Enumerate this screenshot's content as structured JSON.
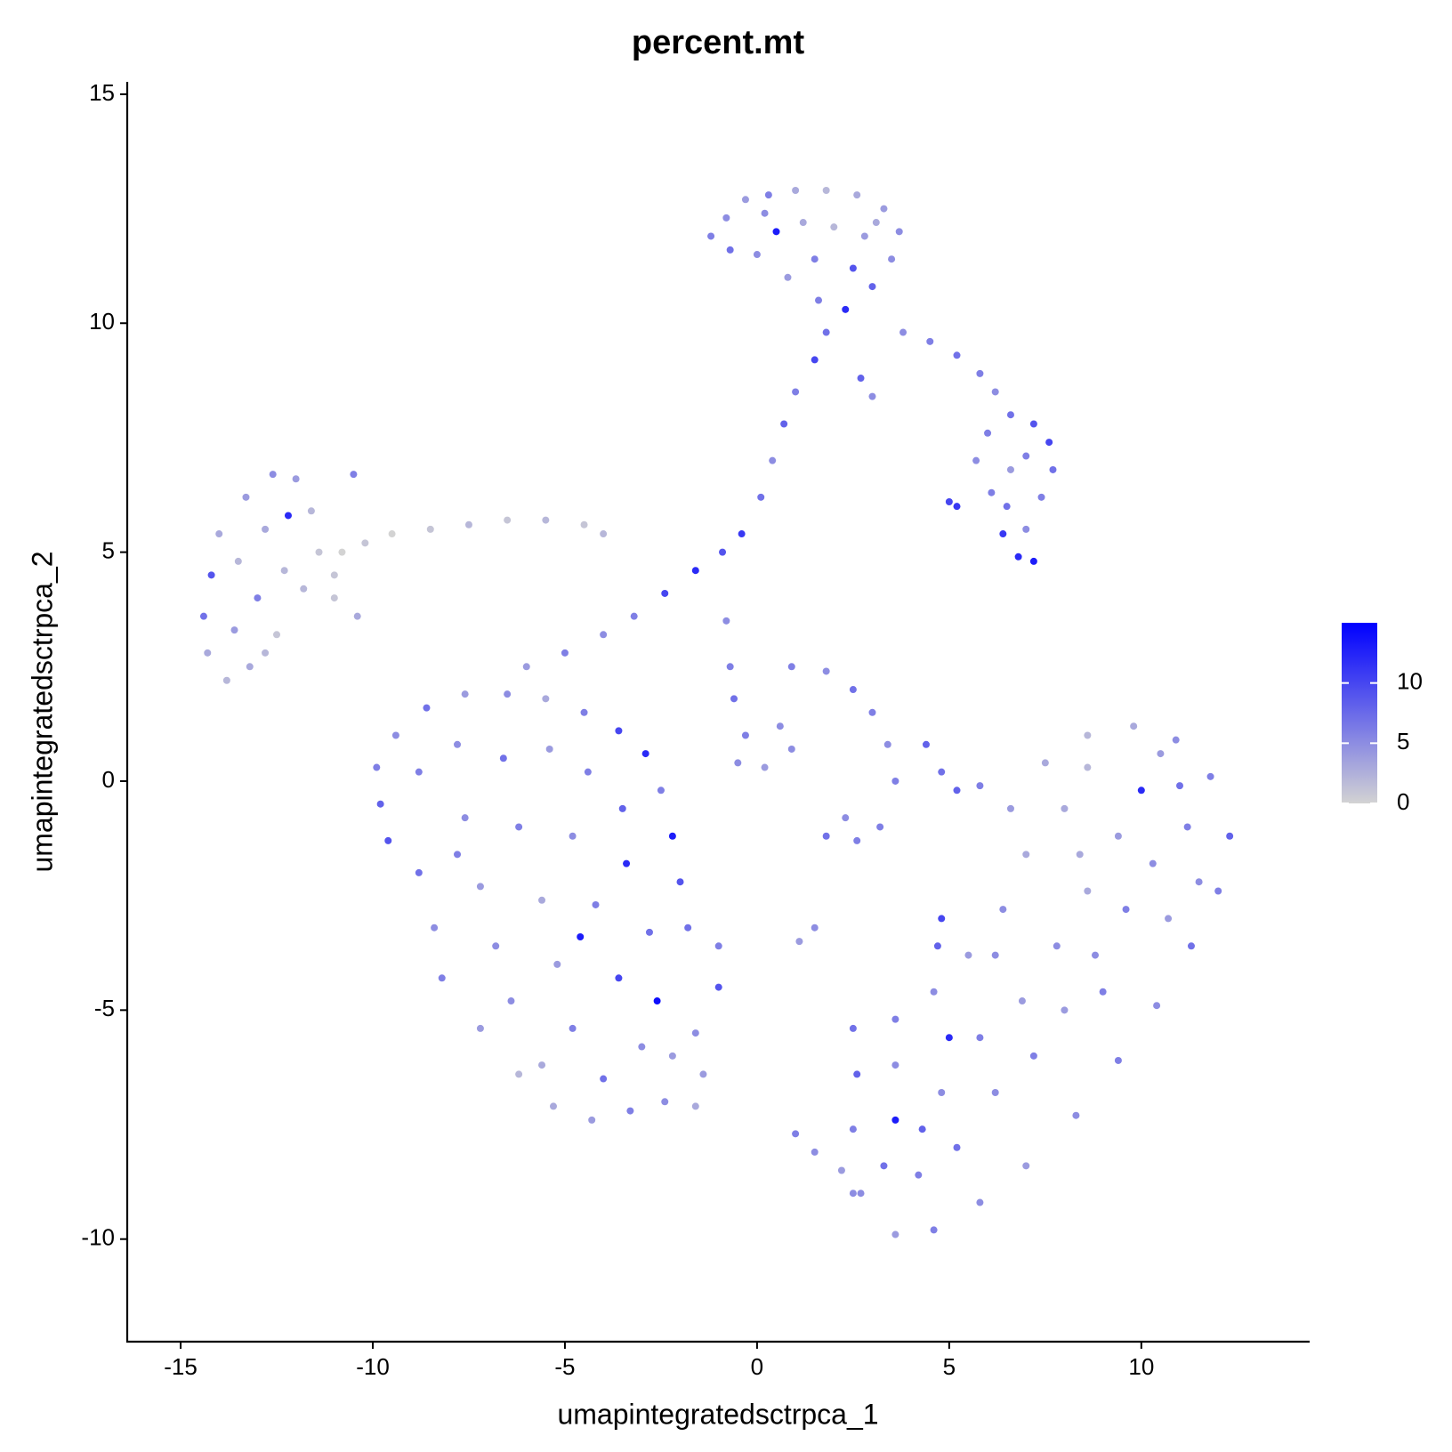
{
  "chart_data": {
    "type": "scatter",
    "title": "percent.mt",
    "x_label": "umapintegratedsctrpca_1",
    "y_label": "umapintegratedsctrpca_2",
    "xlim": [
      -16.39,
      14.38
    ],
    "ylim": [
      -12.24,
      15.27
    ],
    "xticks": [
      -15,
      -10,
      -5,
      0,
      5,
      10
    ],
    "yticks": [
      -10,
      -5,
      0,
      5,
      10,
      15
    ],
    "grid": false,
    "low_color": "#d3d3d3",
    "high_color": "#0000ff",
    "colorlim": [
      0,
      15
    ],
    "colorticks": [
      0,
      5,
      10
    ],
    "x": [
      -1.2,
      -0.8,
      -0.3,
      0.3,
      1,
      1.8,
      2.6,
      3.3,
      3.7,
      3.5,
      3,
      2.3,
      1.6,
      0.8,
      0,
      -0.7,
      0.5,
      1.2,
      2,
      2.8,
      1.5,
      2.5,
      0.2,
      3.1,
      1.8,
      1.5,
      1.0,
      0.7,
      0.4,
      0.1,
      -0.4,
      -0.9,
      -1.6,
      -2.4,
      -3.2,
      -4,
      -5,
      -6,
      -0.8,
      -0.7,
      -0.6,
      2.7,
      3.0,
      3.8,
      4.5,
      5.2,
      5.8,
      6.2,
      6.0,
      6.6,
      7.2,
      7.6,
      7.7,
      7.4,
      7.0,
      6.8,
      7.2,
      6.4,
      6.1,
      5.7,
      6.6,
      7.0,
      6.5,
      5.2,
      5.0,
      -14.4,
      -14.3,
      -13.8,
      -13.2,
      -12.5,
      -11.8,
      -11.4,
      -11.6,
      -12.0,
      -12.6,
      -13.3,
      -14.0,
      -14.2,
      -13.5,
      -12.8,
      -13.0,
      -12.3,
      -13.6,
      -12.8,
      -12.2,
      -10.5,
      -11.0,
      -10.8,
      -10.2,
      -9.5,
      -8.5,
      -7.5,
      -6.5,
      -5.5,
      -4.5,
      -4.0,
      -11.0,
      -10.4,
      -9.8,
      -9.9,
      -9.4,
      -8.6,
      -7.6,
      -6.5,
      -5.5,
      -4.5,
      -3.6,
      -2.9,
      -2.5,
      -2.2,
      -2.0,
      -1.8,
      -1.0,
      -1.0,
      -1.6,
      -1.4,
      -1.6,
      -2.4,
      -3.3,
      -4.3,
      -5.3,
      -6.2,
      -7.2,
      -8.2,
      -8.4,
      -8.8,
      -9.6,
      -8.8,
      -7.8,
      -6.6,
      -5.4,
      -4.4,
      -3.5,
      -7.6,
      -6.2,
      -4.8,
      -3.4,
      -7.2,
      -5.6,
      -4.2,
      -2.8,
      -6.8,
      -5.2,
      -3.6,
      -2.6,
      -6.4,
      -4.8,
      -3.0,
      -5.6,
      -4.0,
      -2.2,
      -7.8,
      -4.6,
      -0.3,
      0.6,
      0.2,
      0.9,
      -0.5,
      0.9,
      1.8,
      2.5,
      3.0,
      3.4,
      3.6,
      2.3,
      1.8,
      2.6,
      3.2,
      1.5,
      1.1,
      4.4,
      4.8,
      5.2,
      5.8,
      4.8,
      4.7,
      1.0,
      1.5,
      2.2,
      2.5,
      2.5,
      3.6,
      4.6,
      5.5,
      6.4,
      7.0,
      6.6,
      7.5,
      8.6,
      9.8,
      10.9,
      11.8,
      12.3,
      12.0,
      11.3,
      10.4,
      9.4,
      8.3,
      7.0,
      5.8,
      4.6,
      3.6,
      2.7,
      2.5,
      2.6,
      3.6,
      3.6,
      4.2,
      4.8,
      5.2,
      5.8,
      6.2,
      6.9,
      7.2,
      7.8,
      8.0,
      8.6,
      8.8,
      9.4,
      9.6,
      10.0,
      10.3,
      10.7,
      11.2,
      11.5,
      8.0,
      8.6,
      10.5,
      9.0,
      6.2,
      4.3,
      3.3,
      5.0,
      8.4,
      11.0
    ],
    "y": [
      11.9,
      12.3,
      12.7,
      12.8,
      12.9,
      12.9,
      12.8,
      12.5,
      12,
      11.4,
      10.8,
      10.3,
      10.5,
      11,
      11.5,
      11.6,
      12,
      12.2,
      12.1,
      11.9,
      11.4,
      11.2,
      12.4,
      12.2,
      9.8,
      9.2,
      8.5,
      7.8,
      7,
      6.2,
      5.4,
      5,
      4.6,
      4.1,
      3.6,
      3.2,
      2.8,
      2.5,
      3.5,
      2.5,
      1.8,
      8.8,
      8.4,
      9.8,
      9.6,
      9.3,
      8.9,
      8.5,
      7.6,
      8.0,
      7.8,
      7.4,
      6.8,
      6.2,
      5.5,
      4.9,
      4.8,
      5.4,
      6.3,
      7.0,
      6.8,
      7.1,
      6.0,
      6.0,
      6.1,
      3.6,
      2.8,
      2.2,
      2.5,
      3.2,
      4.2,
      5.0,
      5.9,
      6.6,
      6.7,
      6.2,
      5.4,
      4.5,
      4.8,
      5.5,
      4.0,
      4.6,
      3.3,
      2.8,
      5.8,
      6.7,
      4.5,
      5.0,
      5.2,
      5.4,
      5.5,
      5.6,
      5.7,
      5.7,
      5.6,
      5.4,
      4.0,
      3.6,
      -0.5,
      0.3,
      1.0,
      1.6,
      1.9,
      1.9,
      1.8,
      1.5,
      1.1,
      0.6,
      -0.2,
      -1.2,
      -2.2,
      -3.2,
      -3.6,
      -4.5,
      -5.5,
      -6.4,
      -7.1,
      -7.0,
      -7.2,
      -7.4,
      -7.1,
      -6.4,
      -5.4,
      -4.3,
      -3.2,
      -2.0,
      -1.3,
      0.2,
      0.8,
      0.5,
      0.7,
      0.2,
      -0.6,
      -0.8,
      -1.0,
      -1.2,
      -1.8,
      -2.3,
      -2.6,
      -2.7,
      -3.3,
      -3.6,
      -4.0,
      -4.3,
      -4.8,
      -4.8,
      -5.4,
      -5.8,
      -6.2,
      -6.5,
      -6.0,
      -1.6,
      -3.4,
      1.0,
      1.2,
      0.3,
      0.7,
      0.4,
      2.5,
      2.4,
      2.0,
      1.5,
      0.8,
      0.0,
      -0.8,
      -1.2,
      -1.3,
      -1.0,
      -3.2,
      -3.5,
      0.8,
      0.2,
      -0.2,
      -0.1,
      -3.0,
      -3.6,
      -7.7,
      -8.1,
      -8.5,
      -9.0,
      -5.4,
      -5.2,
      -4.6,
      -3.8,
      -2.8,
      -1.6,
      -0.6,
      0.4,
      1.0,
      1.2,
      0.9,
      0.1,
      -1.2,
      -2.4,
      -3.6,
      -4.9,
      -6.1,
      -7.3,
      -8.4,
      -9.2,
      -9.8,
      -9.9,
      -9.0,
      -7.6,
      -6.4,
      -6.2,
      -7.4,
      -8.6,
      -6.8,
      -8.0,
      -5.6,
      -6.8,
      -4.8,
      -6.0,
      -3.6,
      -5.0,
      -2.4,
      -3.8,
      -1.2,
      -2.8,
      -0.2,
      -1.8,
      -3.0,
      -1.0,
      -2.2,
      -0.6,
      0.3,
      0.6,
      -4.6,
      -3.8,
      -7.6,
      -8.4,
      -5.6,
      -1.6,
      -0.1
    ],
    "values": [
      6,
      5,
      4,
      6,
      3,
      2,
      3,
      4,
      5,
      5,
      8,
      12,
      6,
      4,
      5,
      7,
      13,
      3,
      2,
      4,
      6,
      9,
      5,
      3,
      7,
      10,
      6,
      8,
      5,
      7,
      11,
      9,
      12,
      10,
      6,
      5,
      6,
      4,
      5,
      6,
      7,
      8,
      5,
      5,
      6,
      7,
      6,
      5,
      6,
      7,
      9,
      10,
      7,
      6,
      5,
      12,
      13,
      11,
      6,
      5,
      4,
      6,
      7,
      11,
      10,
      7,
      3,
      2,
      3,
      1,
      2,
      1,
      2,
      4,
      5,
      4,
      3,
      9,
      2,
      3,
      6,
      2,
      4,
      2,
      12,
      6,
      1,
      0,
      1,
      0,
      1,
      2,
      1,
      2,
      1,
      2,
      1,
      3,
      8,
      6,
      5,
      7,
      4,
      5,
      3,
      6,
      10,
      12,
      6,
      13,
      9,
      7,
      6,
      9,
      5,
      4,
      3,
      5,
      6,
      4,
      3,
      2,
      4,
      6,
      5,
      7,
      9,
      6,
      5,
      7,
      4,
      6,
      8,
      5,
      6,
      5,
      12,
      4,
      3,
      6,
      7,
      5,
      4,
      10,
      14,
      5,
      6,
      5,
      3,
      7,
      4,
      6,
      13,
      6,
      5,
      4,
      5,
      5,
      6,
      5,
      7,
      6,
      5,
      6,
      5,
      7,
      6,
      6,
      5,
      4,
      8,
      7,
      8,
      6,
      10,
      8,
      6,
      5,
      4,
      5,
      7,
      6,
      5,
      4,
      5,
      3,
      4,
      3,
      2,
      3,
      5,
      6,
      8,
      6,
      7,
      5,
      6,
      5,
      4,
      5,
      6,
      4,
      5,
      6,
      8,
      5,
      13,
      6,
      5,
      7,
      6,
      5,
      4,
      6,
      5,
      4,
      3,
      5,
      4,
      6,
      12,
      5,
      4,
      6,
      5,
      3,
      2,
      4,
      6,
      5,
      8,
      7,
      12,
      3,
      7
    ]
  }
}
